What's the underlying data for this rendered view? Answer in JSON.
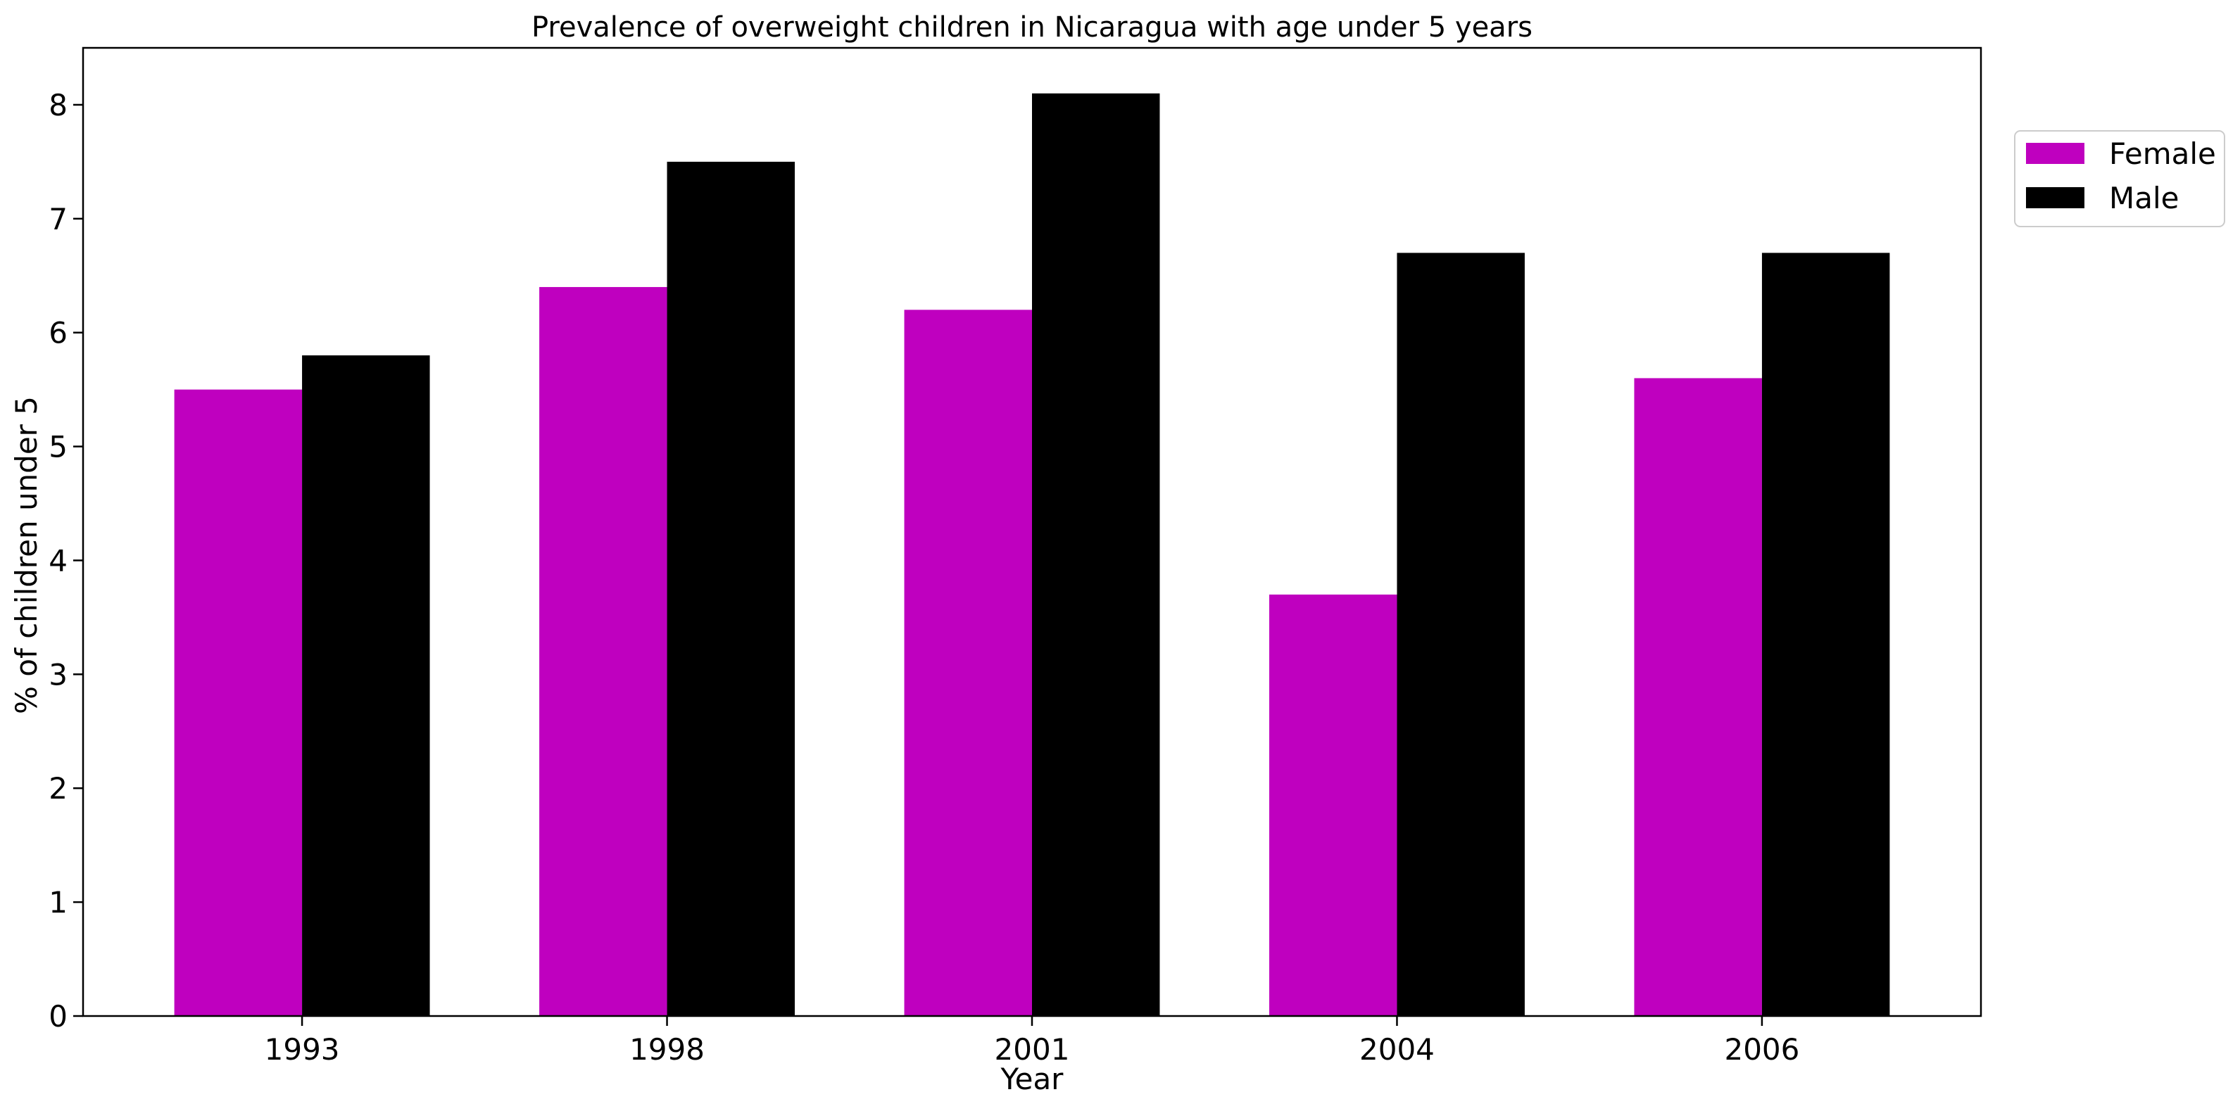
{
  "chart_data": {
    "type": "bar",
    "title": "Prevalence of overweight children in Nicaragua with age under 5 years",
    "xlabel": "Year",
    "ylabel": "% of children under 5",
    "categories": [
      "1993",
      "1998",
      "2001",
      "2004",
      "2006"
    ],
    "series": [
      {
        "name": "Female",
        "color": "#bf00bf",
        "values": [
          5.5,
          6.4,
          6.2,
          3.7,
          5.6
        ]
      },
      {
        "name": "Male",
        "color": "#000000",
        "values": [
          5.8,
          7.5,
          8.1,
          6.7,
          6.7
        ]
      }
    ],
    "ylim": [
      0,
      8.5
    ],
    "yticks": [
      0,
      1,
      2,
      3,
      4,
      5,
      6,
      7,
      8
    ],
    "grid": false,
    "legend_position": "outside top-right"
  }
}
